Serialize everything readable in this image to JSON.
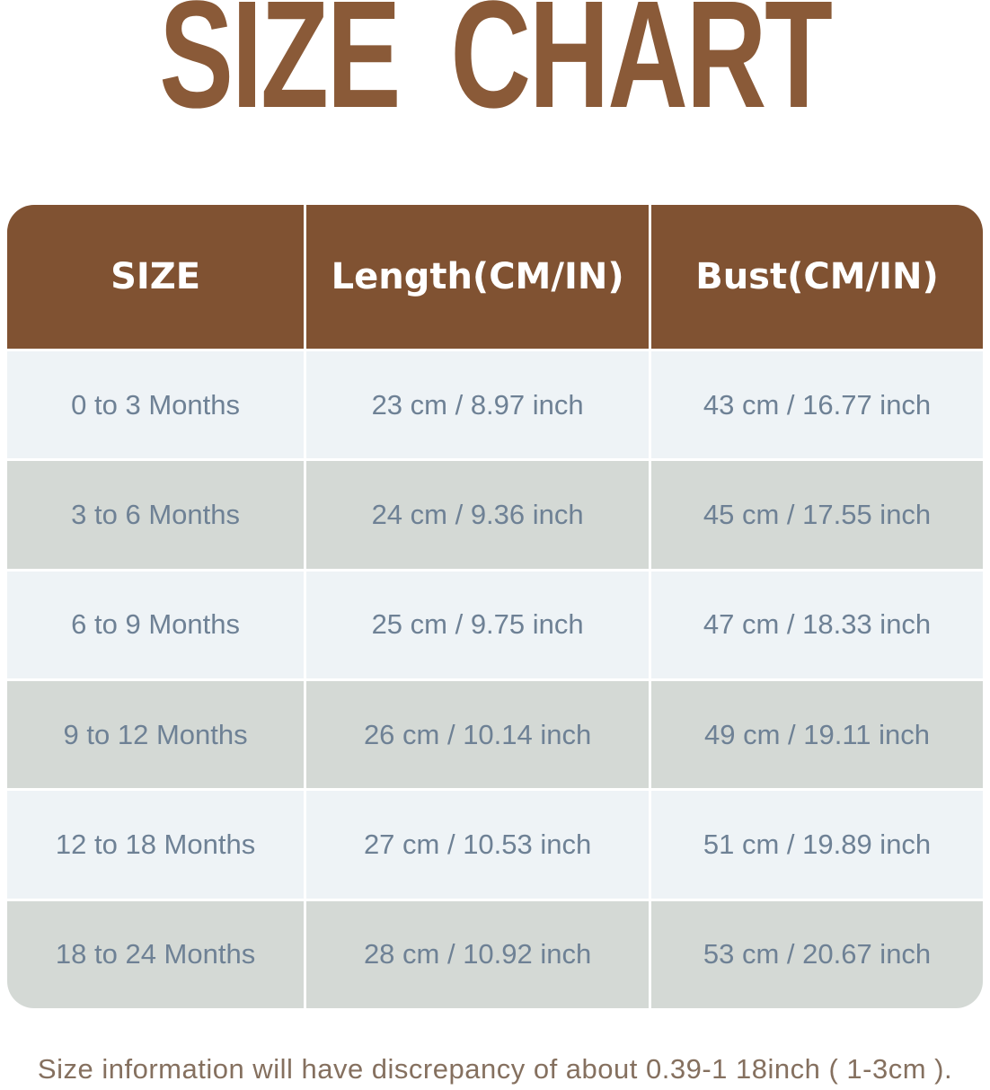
{
  "title": "SIZE CHART",
  "colors": {
    "title_color": "#8a5a38",
    "header_bg": "#805232",
    "header_text": "#ffffff",
    "row_light": "#eef3f6",
    "row_gray": "#d4d9d5",
    "cell_text": "#6e8195",
    "footer_text": "#85705f",
    "page_bg": "#ffffff"
  },
  "table": {
    "columns": [
      "SIZE",
      "Length(CM/IN)",
      "Bust(CM/IN)"
    ],
    "rows": [
      [
        "0 to 3 Months",
        "23 cm / 8.97 inch",
        "43 cm / 16.77 inch"
      ],
      [
        "3 to 6 Months",
        "24 cm / 9.36 inch",
        "45 cm / 17.55 inch"
      ],
      [
        "6 to 9 Months",
        "25 cm / 9.75 inch",
        "47 cm / 18.33 inch"
      ],
      [
        "9 to 12 Months",
        "26 cm / 10.14 inch",
        "49 cm / 19.11 inch"
      ],
      [
        "12 to 18 Months",
        "27 cm / 10.53 inch",
        "51 cm / 19.89 inch"
      ],
      [
        "18 to 24 Months",
        "28 cm / 10.92 inch",
        "53 cm / 20.67 inch"
      ]
    ]
  },
  "footer_note": "Size information will have discrepancy of about 0.39-1 18inch ( 1-3cm )."
}
